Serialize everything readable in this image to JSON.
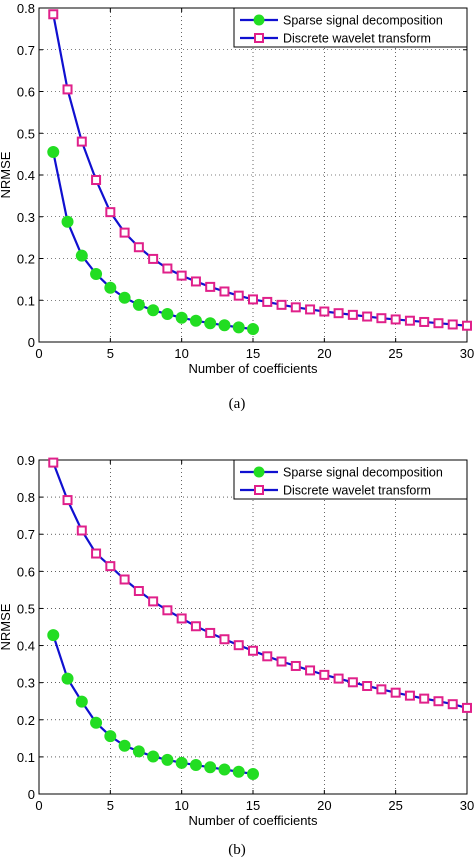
{
  "chart_data": [
    {
      "type": "line",
      "panel_label": "(a)",
      "xlabel": "Number of coefficients",
      "ylabel": "NRMSE",
      "xlim": [
        0,
        30
      ],
      "ylim": [
        0,
        0.8
      ],
      "xticks": [
        0,
        5,
        10,
        15,
        20,
        25,
        30
      ],
      "yticks": [
        0,
        0.1,
        0.2,
        0.3,
        0.4,
        0.5,
        0.6,
        0.7,
        0.8
      ],
      "ytick_labels": [
        "0",
        "0.1",
        "0.2",
        "0.3",
        "0.4",
        "0.5",
        "0.6",
        "0.7",
        "0.8"
      ],
      "grid": true,
      "legend_position": "top-right",
      "series": [
        {
          "name": "Sparse signal decomposition",
          "marker": "circle",
          "line_color": "#1010d0",
          "marker_color": "#22dd22",
          "x": [
            1,
            2,
            3,
            4,
            5,
            6,
            7,
            8,
            9,
            10,
            11,
            12,
            13,
            14,
            15
          ],
          "values": [
            0.455,
            0.288,
            0.207,
            0.163,
            0.13,
            0.106,
            0.089,
            0.076,
            0.067,
            0.058,
            0.051,
            0.045,
            0.04,
            0.035,
            0.031
          ]
        },
        {
          "name": "Discrete wavelet transform",
          "marker": "square",
          "line_color": "#1010d0",
          "marker_color": "#e0208a",
          "x": [
            1,
            2,
            3,
            4,
            5,
            6,
            7,
            8,
            9,
            10,
            11,
            12,
            13,
            14,
            15,
            16,
            17,
            18,
            19,
            20,
            21,
            22,
            23,
            24,
            25,
            26,
            27,
            28,
            29,
            30
          ],
          "values": [
            0.785,
            0.605,
            0.48,
            0.388,
            0.311,
            0.262,
            0.227,
            0.199,
            0.176,
            0.159,
            0.145,
            0.132,
            0.121,
            0.111,
            0.102,
            0.096,
            0.089,
            0.083,
            0.078,
            0.073,
            0.069,
            0.065,
            0.061,
            0.057,
            0.054,
            0.051,
            0.048,
            0.045,
            0.042,
            0.039
          ]
        }
      ]
    },
    {
      "type": "line",
      "panel_label": "(b)",
      "xlabel": "Number of coefficients",
      "ylabel": "NRMSE",
      "xlim": [
        0,
        30
      ],
      "ylim": [
        0,
        0.9
      ],
      "xticks": [
        0,
        5,
        10,
        15,
        20,
        25,
        30
      ],
      "yticks": [
        0,
        0.1,
        0.2,
        0.3,
        0.4,
        0.5,
        0.6,
        0.7,
        0.8,
        0.9
      ],
      "ytick_labels": [
        "0",
        "0.1",
        "0.2",
        "0.3",
        "0.4",
        "0.5",
        "0.6",
        "0.7",
        "0.8",
        "0.9"
      ],
      "grid": true,
      "legend_position": "top-right",
      "series": [
        {
          "name": "Sparse signal decomposition",
          "marker": "circle",
          "line_color": "#1010d0",
          "marker_color": "#22dd22",
          "x": [
            1,
            2,
            3,
            4,
            5,
            6,
            7,
            8,
            9,
            10,
            11,
            12,
            13,
            14,
            15
          ],
          "values": [
            0.428,
            0.311,
            0.249,
            0.192,
            0.156,
            0.13,
            0.115,
            0.101,
            0.092,
            0.084,
            0.078,
            0.072,
            0.066,
            0.06,
            0.054
          ]
        },
        {
          "name": "Discrete wavelet transform",
          "marker": "square",
          "line_color": "#1010d0",
          "marker_color": "#e0208a",
          "x": [
            1,
            2,
            3,
            4,
            5,
            6,
            7,
            8,
            9,
            10,
            11,
            12,
            13,
            14,
            15,
            16,
            17,
            18,
            19,
            20,
            21,
            22,
            23,
            24,
            25,
            26,
            27,
            28,
            29,
            30
          ],
          "values": [
            0.893,
            0.792,
            0.71,
            0.648,
            0.614,
            0.578,
            0.547,
            0.519,
            0.495,
            0.473,
            0.452,
            0.434,
            0.417,
            0.401,
            0.386,
            0.371,
            0.357,
            0.345,
            0.333,
            0.321,
            0.311,
            0.301,
            0.291,
            0.282,
            0.273,
            0.265,
            0.257,
            0.25,
            0.242,
            0.232
          ]
        }
      ]
    }
  ]
}
